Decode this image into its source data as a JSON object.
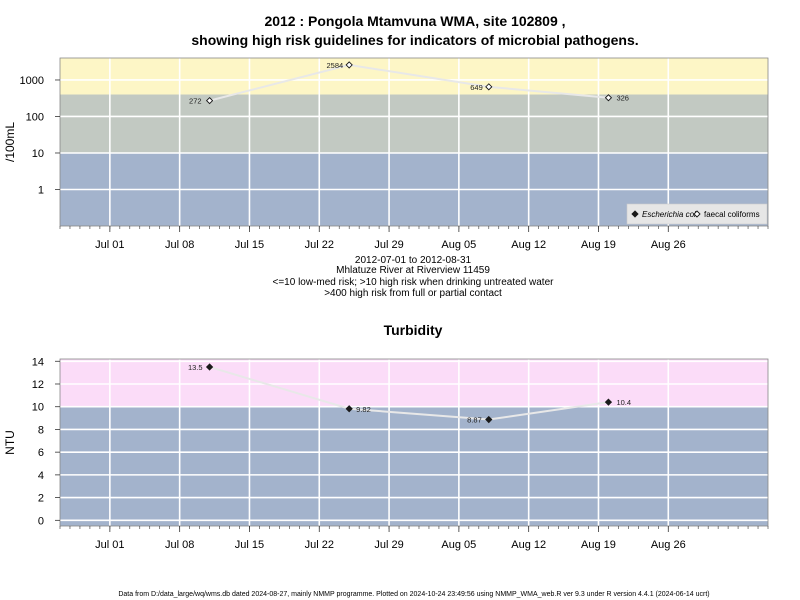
{
  "chart_data": [
    {
      "type": "scatter",
      "title_line1": "2012 : Pongola Mtamvuna WMA, site 102809 ,",
      "title_line2": "showing high risk guidelines for indicators of microbial pathogens.",
      "ylabel": "/100mL",
      "yscale": "log",
      "ylim": [
        0.1,
        4000
      ],
      "yticks": [
        1,
        10,
        100,
        1000
      ],
      "ytick_labels": [
        "1",
        "10",
        "100",
        "1000"
      ],
      "xlim": [
        "2012-06-26",
        "2012-09-05"
      ],
      "xticks": [
        "2012-07-01",
        "2012-07-08",
        "2012-07-15",
        "2012-07-22",
        "2012-07-29",
        "2012-08-05",
        "2012-08-12",
        "2012-08-19",
        "2012-08-26"
      ],
      "xtick_labels": [
        "Jul 01",
        "Jul 08",
        "Jul 15",
        "Jul 22",
        "Jul 29",
        "Aug 05",
        "Aug 12",
        "Aug 19",
        "Aug 26"
      ],
      "bands": [
        {
          "from": 0.1,
          "to": 10,
          "color": "#a3b3cc"
        },
        {
          "from": 10,
          "to": 400,
          "color": "#c2c9c2"
        },
        {
          "from": 400,
          "to": 4000,
          "color": "#fdf6c6"
        }
      ],
      "series": [
        {
          "name": "Escherichia coli",
          "marker": "filled-diamond",
          "x": [],
          "y": [],
          "labels": []
        },
        {
          "name": "faecal coliforms",
          "marker": "open-diamond",
          "x": [
            "2012-07-11",
            "2012-07-25",
            "2012-08-08",
            "2012-08-20"
          ],
          "y": [
            272,
            2584,
            649,
            326
          ],
          "labels": [
            "272",
            "2584",
            "649",
            "326"
          ]
        }
      ],
      "legend_position": "bottom-right",
      "caption_lines": [
        "2012-07-01 to 2012-08-31",
        "Mhlatuze River at Riverview 11459",
        "<=10 low-med risk; >10 high risk when drinking untreated water",
        ">400 high risk from full or partial contact"
      ]
    },
    {
      "type": "scatter",
      "title": "Turbidity",
      "ylabel": "NTU",
      "ylim": [
        -0.5,
        14.2
      ],
      "yticks": [
        0,
        2,
        4,
        6,
        8,
        10,
        12,
        14
      ],
      "ytick_labels": [
        "0",
        "2",
        "4",
        "6",
        "8",
        "10",
        "12",
        "14"
      ],
      "xlim": [
        "2012-06-26",
        "2012-09-05"
      ],
      "xticks": [
        "2012-07-01",
        "2012-07-08",
        "2012-07-15",
        "2012-07-22",
        "2012-07-29",
        "2012-08-05",
        "2012-08-12",
        "2012-08-19",
        "2012-08-26"
      ],
      "xtick_labels": [
        "Jul 01",
        "Jul 08",
        "Jul 15",
        "Jul 22",
        "Jul 29",
        "Aug 05",
        "Aug 12",
        "Aug 19",
        "Aug 26"
      ],
      "bands": [
        {
          "from": -0.5,
          "to": 10,
          "color": "#a3b3cc"
        },
        {
          "from": 10,
          "to": 14.2,
          "color": "#fbdcf8"
        }
      ],
      "series": [
        {
          "name": "Turbidity",
          "marker": "filled-diamond",
          "x": [
            "2012-07-11",
            "2012-07-25",
            "2012-08-08",
            "2012-08-20"
          ],
          "y": [
            13.5,
            9.82,
            8.87,
            10.4
          ],
          "labels": [
            "13.5",
            "9.82",
            "8.87",
            "10.4"
          ]
        }
      ]
    }
  ],
  "footer": "Data from D:/data_large/wq/wms.db dated 2024-08-27, mainly NMMP programme. Plotted on 2024-10-24 23:49:56 using NMMP_WMA_web.R ver 9.3 under R version 4.4.1 (2024-06-14 ucrt)"
}
